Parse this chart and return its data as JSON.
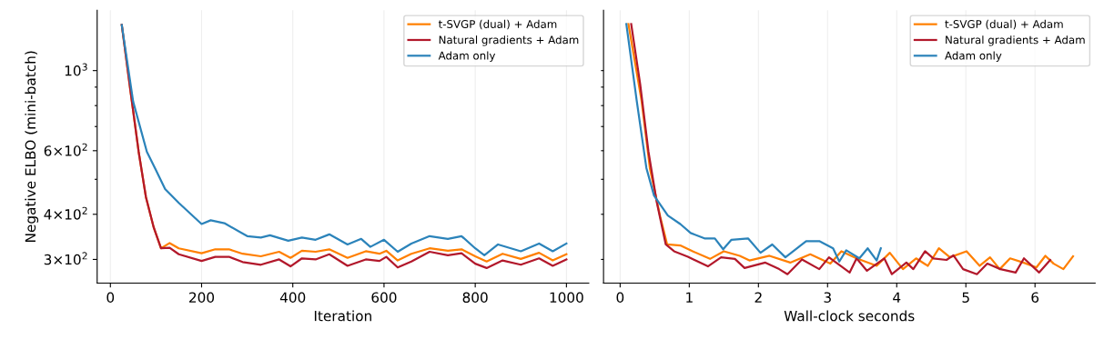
{
  "chart_data": [
    {
      "type": "line",
      "xlabel": "Iteration",
      "ylabel": "Negative ELBO (mini-batch)",
      "log": "y",
      "grid": "x",
      "legend": "top right",
      "xlim": [
        -29,
        1049
      ],
      "xticks": [
        0,
        200,
        400,
        600,
        800,
        1000
      ],
      "ylim": [
        258,
        1470
      ],
      "yticks": [
        {
          "value": 300,
          "label": "3×10$^{2}$"
        },
        {
          "value": 400,
          "label": "4×10$^{2}$"
        },
        {
          "value": 500,
          "label": null
        },
        {
          "value": 600,
          "label": "6×10$^{2}$"
        },
        {
          "value": 700,
          "label": null
        },
        {
          "value": 800,
          "label": null
        },
        {
          "value": 900,
          "label": null
        },
        {
          "value": 1000,
          "label": "10$^{3}$"
        }
      ],
      "series": [
        {
          "name": "t-SVGP (dual) + Adam",
          "color": "#ff7f00",
          "x": [
            25,
            45,
            62,
            78,
            95,
            111,
            130,
            150,
            200,
            230,
            260,
            290,
            330,
            370,
            395,
            420,
            450,
            480,
            520,
            560,
            590,
            605,
            630,
            660,
            700,
            740,
            770,
            800,
            825,
            860,
            900,
            940,
            970,
            1000
          ],
          "values": [
            1337,
            860,
            596,
            446,
            368,
            322,
            333,
            322,
            312,
            320,
            320,
            311,
            306,
            315,
            303,
            317,
            315,
            320,
            303,
            316,
            311,
            317,
            298,
            311,
            322,
            317,
            320,
            306,
            296,
            311,
            301,
            313,
            298,
            310
          ]
        },
        {
          "name": "Natural gradients + Adam",
          "color": "#b2182b",
          "x": [
            25,
            45,
            62,
            78,
            95,
            111,
            130,
            150,
            200,
            230,
            260,
            290,
            330,
            370,
            395,
            420,
            450,
            480,
            520,
            560,
            590,
            605,
            630,
            660,
            700,
            740,
            770,
            800,
            825,
            860,
            900,
            940,
            970,
            1000
          ],
          "values": [
            1337,
            860,
            596,
            446,
            368,
            322,
            323,
            310,
            297,
            305,
            305,
            295,
            290,
            300,
            287,
            302,
            300,
            310,
            288,
            300,
            297,
            305,
            285,
            296,
            315,
            308,
            312,
            292,
            284,
            298,
            290,
            302,
            288,
            300
          ]
        },
        {
          "name": "Adam only",
          "color": "#2b83ba",
          "x": [
            25,
            50,
            80,
            100,
            120,
            150,
            200,
            220,
            250,
            300,
            330,
            350,
            390,
            420,
            450,
            480,
            520,
            550,
            570,
            600,
            630,
            660,
            700,
            740,
            770,
            800,
            820,
            850,
            900,
            940,
            970,
            1000
          ],
          "values": [
            1337,
            820,
            596,
            530,
            470,
            430,
            376,
            385,
            378,
            348,
            345,
            350,
            338,
            345,
            340,
            352,
            330,
            342,
            325,
            340,
            315,
            332,
            348,
            342,
            348,
            322,
            308,
            330,
            316,
            332,
            316,
            332
          ]
        }
      ]
    },
    {
      "type": "line",
      "xlabel": "Wall-clock seconds",
      "log": "y",
      "grid": "x",
      "legend": "top right",
      "tick_labels": "x",
      "xlim": [
        -0.24,
        6.87
      ],
      "xticks": [
        0,
        1,
        2,
        3,
        4,
        5,
        6
      ],
      "ylim": [
        258,
        1470
      ],
      "yticks": [
        {
          "value": 300,
          "label": null
        },
        {
          "value": 400,
          "label": null
        },
        {
          "value": 500,
          "label": null
        },
        {
          "value": 600,
          "label": null
        },
        {
          "value": 700,
          "label": null
        },
        {
          "value": 800,
          "label": null
        },
        {
          "value": 900,
          "label": null
        },
        {
          "value": 1000,
          "label": null
        }
      ],
      "series": [
        {
          "name": "t-SVGP (dual) + Adam",
          "color": "#ff7f00",
          "x": [
            0.12,
            0.31,
            0.43,
            0.58,
            0.68,
            0.87,
            1.05,
            1.3,
            1.5,
            1.73,
            1.87,
            2.16,
            2.46,
            2.75,
            3.04,
            3.2,
            3.42,
            3.71,
            3.9,
            4.09,
            4.28,
            4.45,
            4.61,
            4.77,
            5.01,
            5.2,
            5.35,
            5.49,
            5.64,
            5.83,
            6.02,
            6.15,
            6.27,
            6.41,
            6.55
          ],
          "values": [
            1345,
            825,
            537,
            394,
            330,
            328,
            316,
            301,
            316,
            307,
            298,
            307,
            294,
            310,
            292,
            316,
            302,
            288,
            313,
            282,
            302,
            288,
            322,
            304,
            316,
            288,
            304,
            282,
            302,
            294,
            285,
            307,
            292,
            282,
            306
          ]
        },
        {
          "name": "Natural gradients + Adam",
          "color": "#b2182b",
          "x": [
            0.16,
            0.29,
            0.41,
            0.53,
            0.66,
            0.78,
            0.98,
            1.27,
            1.46,
            1.66,
            1.8,
            2.1,
            2.3,
            2.42,
            2.63,
            2.88,
            3.02,
            3.32,
            3.42,
            3.57,
            3.82,
            3.93,
            4.14,
            4.24,
            4.41,
            4.53,
            4.72,
            4.82,
            4.96,
            5.16,
            5.31,
            5.5,
            5.72,
            5.84,
            6.06,
            6.22
          ],
          "values": [
            1345,
            917,
            596,
            432,
            330,
            316,
            305,
            287,
            304,
            301,
            284,
            294,
            282,
            273,
            300,
            282,
            304,
            276,
            302,
            279,
            302,
            273,
            294,
            282,
            316,
            302,
            299,
            308,
            282,
            273,
            292,
            282,
            276,
            302,
            276,
            299
          ]
        },
        {
          "name": "Adam only",
          "color": "#2b83ba",
          "x": [
            0.09,
            0.24,
            0.38,
            0.49,
            0.69,
            0.87,
            1.02,
            1.22,
            1.37,
            1.49,
            1.61,
            1.85,
            2.03,
            2.2,
            2.39,
            2.69,
            2.88,
            3.08,
            3.17,
            3.27,
            3.46,
            3.58,
            3.71,
            3.77
          ],
          "values": [
            1345,
            825,
            537,
            451,
            397,
            376,
            355,
            343,
            343,
            320,
            340,
            343,
            313,
            330,
            304,
            337,
            337,
            322,
            296,
            318,
            302,
            322,
            298,
            322
          ]
        }
      ]
    }
  ]
}
